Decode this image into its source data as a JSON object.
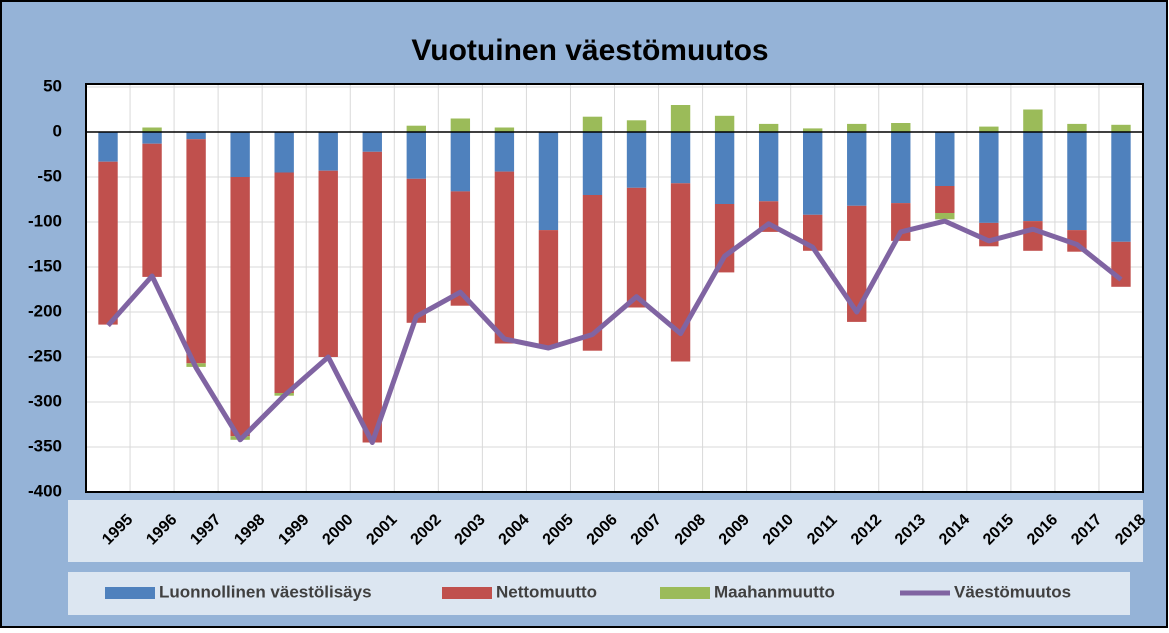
{
  "chart_data": {
    "type": "bar",
    "stacked": true,
    "title": "Vuotuinen väestömuutos",
    "categories": [
      "1995",
      "1996",
      "1997",
      "1998",
      "1999",
      "2000",
      "2001",
      "2002",
      "2003",
      "2004",
      "2005",
      "2006",
      "2007",
      "2008",
      "2009",
      "2010",
      "2011",
      "2012",
      "2013",
      "2014",
      "2015",
      "2016",
      "2017",
      "2018"
    ],
    "series": [
      {
        "name": "Luonnollinen väestölisäys",
        "type": "bar",
        "color": "#4f81bd",
        "values": [
          -33,
          -13,
          -8,
          -50,
          -45,
          -43,
          -22,
          -52,
          -66,
          -44,
          -109,
          -70,
          -62,
          -57,
          -80,
          -77,
          -92,
          -82,
          -79,
          -60,
          -101,
          -99,
          -109,
          -122
        ]
      },
      {
        "name": "Nettomuutto",
        "type": "bar",
        "color": "#c0504d",
        "values": [
          -181,
          -148,
          -249,
          -288,
          -245,
          -207,
          -323,
          -160,
          -127,
          -191,
          -129,
          -173,
          -133,
          -198,
          -76,
          -34,
          -40,
          -129,
          -42,
          -30,
          -26,
          -33,
          -24,
          -50
        ]
      },
      {
        "name": "Maahanmuutto",
        "type": "bar",
        "color": "#9bbb59",
        "values": [
          0,
          5,
          -4,
          -4,
          -3,
          0,
          0,
          7,
          15,
          5,
          0,
          17,
          13,
          30,
          18,
          9,
          4,
          9,
          10,
          -7,
          6,
          25,
          9,
          8
        ]
      },
      {
        "name": "Väestömuutos",
        "type": "line",
        "color": "#8064a2",
        "values": [
          -215,
          -160,
          -262,
          -342,
          -293,
          -250,
          -345,
          -205,
          -178,
          -230,
          -240,
          -225,
          -183,
          -224,
          -138,
          -102,
          -128,
          -200,
          -111,
          -99,
          -121,
          -108,
          -125,
          -164
        ]
      }
    ],
    "ylim": [
      -400,
      50
    ],
    "yticks": [
      -400,
      -350,
      -300,
      -250,
      -200,
      -150,
      -100,
      -50,
      0,
      50
    ],
    "grid": true,
    "legend": "bottom"
  }
}
